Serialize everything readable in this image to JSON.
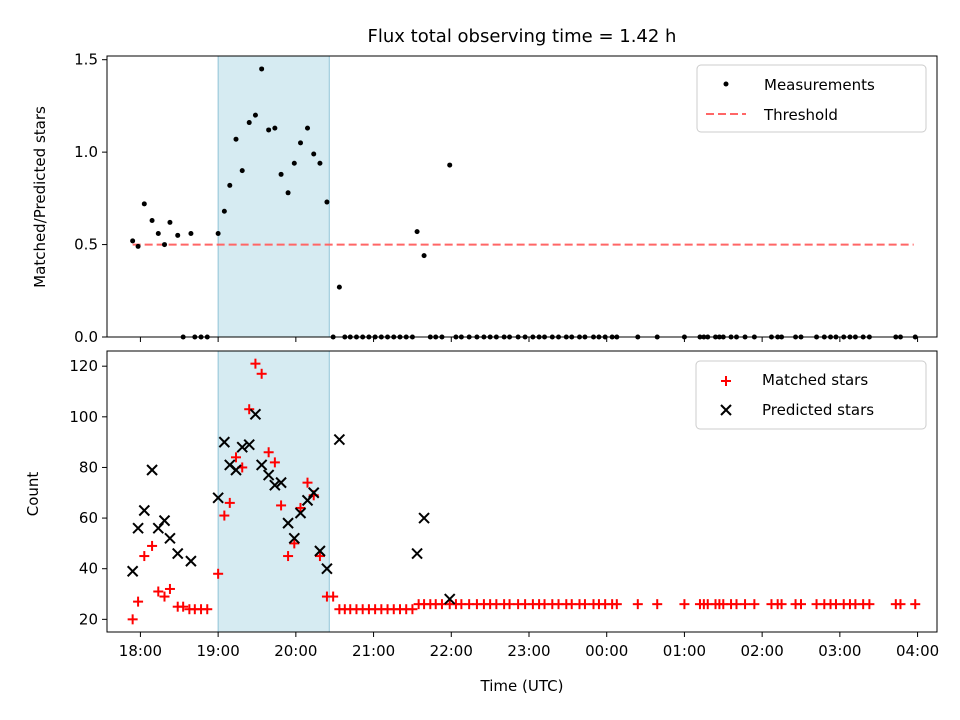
{
  "chart_data": [
    {
      "type": "scatter",
      "title": "Flux total observing time = 1.42 h",
      "xlabel": "",
      "ylabel": "Matched/Predicted stars",
      "xlim": [
        17.57,
        4.25
      ],
      "ylim": [
        0,
        1.52
      ],
      "yticks": [
        0.0,
        0.5,
        1.0,
        1.5
      ],
      "ytick_labels": [
        "0.0",
        "0.5",
        "1.0",
        "1.5"
      ],
      "shaded_span": [
        19.0,
        20.43
      ],
      "legend": {
        "position": "top-right",
        "entries": [
          "Measurements",
          "Threshold"
        ]
      },
      "threshold": {
        "value": 0.5,
        "x_start": 17.9,
        "x_end": 27.95,
        "name": "Threshold"
      },
      "measurements_nonzero": [
        [
          17.9,
          0.52
        ],
        [
          17.97,
          0.49
        ],
        [
          18.05,
          0.72
        ],
        [
          18.15,
          0.63
        ],
        [
          18.23,
          0.56
        ],
        [
          18.31,
          0.5
        ],
        [
          18.38,
          0.62
        ],
        [
          18.48,
          0.55
        ],
        [
          18.65,
          0.56
        ],
        [
          19.0,
          0.56
        ],
        [
          19.08,
          0.68
        ],
        [
          19.15,
          0.82
        ],
        [
          19.23,
          1.07
        ],
        [
          19.31,
          0.9
        ],
        [
          19.4,
          1.16
        ],
        [
          19.48,
          1.2
        ],
        [
          19.56,
          1.45
        ],
        [
          19.65,
          1.12
        ],
        [
          19.73,
          1.13
        ],
        [
          19.81,
          0.88
        ],
        [
          19.9,
          0.78
        ],
        [
          19.98,
          0.94
        ],
        [
          20.06,
          1.05
        ],
        [
          20.15,
          1.13
        ],
        [
          20.23,
          0.99
        ],
        [
          20.31,
          0.94
        ],
        [
          20.4,
          0.73
        ],
        [
          20.56,
          0.27
        ],
        [
          21.56,
          0.57
        ],
        [
          21.65,
          0.44
        ],
        [
          21.98,
          0.93
        ]
      ],
      "measurements_zero_x": [
        18.55,
        18.7,
        18.78,
        18.86,
        20.48,
        20.63,
        20.7,
        20.78,
        20.86,
        20.94,
        21.02,
        21.1,
        21.18,
        21.26,
        21.34,
        21.42,
        21.5,
        21.73,
        21.8,
        21.88,
        22.06,
        22.13,
        22.23,
        22.33,
        22.42,
        22.5,
        22.58,
        22.68,
        22.75,
        22.86,
        22.95,
        23.05,
        23.13,
        23.2,
        23.3,
        23.38,
        23.48,
        23.55,
        23.65,
        23.72,
        23.83,
        23.9,
        23.98,
        24.07,
        24.13,
        24.4,
        24.65,
        25.0,
        25.2,
        25.25,
        25.3,
        25.4,
        25.45,
        25.5,
        25.6,
        25.67,
        25.78,
        25.9,
        26.12,
        26.2,
        26.25,
        26.43,
        26.5,
        26.7,
        26.8,
        26.88,
        26.95,
        27.05,
        27.13,
        27.2,
        27.3,
        27.38,
        27.72,
        27.78,
        27.97
      ]
    },
    {
      "type": "scatter",
      "title": "",
      "xlabel": "Time (UTC)",
      "ylabel": "Count",
      "xlim": [
        17.57,
        4.25
      ],
      "ylim": [
        15,
        126
      ],
      "yticks": [
        20,
        40,
        60,
        80,
        100,
        120
      ],
      "ytick_labels": [
        "20",
        "40",
        "60",
        "80",
        "100",
        "120"
      ],
      "xticks": [
        18,
        19,
        20,
        21,
        22,
        23,
        24,
        25,
        26,
        27,
        28
      ],
      "xtick_labels": [
        "18:00",
        "19:00",
        "20:00",
        "21:00",
        "22:00",
        "23:00",
        "00:00",
        "01:00",
        "02:00",
        "03:00",
        "04:00"
      ],
      "shaded_span": [
        19.0,
        20.43
      ],
      "legend": {
        "position": "top-right",
        "entries": [
          "Matched stars",
          "Predicted stars"
        ]
      },
      "series": [
        {
          "name": "Matched stars",
          "marker": "+",
          "color": "#ff0000",
          "points": [
            [
              17.9,
              20
            ],
            [
              17.97,
              27
            ],
            [
              18.05,
              45
            ],
            [
              18.15,
              49
            ],
            [
              18.23,
              31
            ],
            [
              18.31,
              29
            ],
            [
              18.38,
              32
            ],
            [
              18.48,
              25
            ],
            [
              18.55,
              25
            ],
            [
              18.63,
              24
            ],
            [
              18.7,
              24
            ],
            [
              18.78,
              24
            ],
            [
              18.86,
              24
            ],
            [
              19.0,
              38
            ],
            [
              19.08,
              61
            ],
            [
              19.15,
              66
            ],
            [
              19.23,
              84
            ],
            [
              19.31,
              80
            ],
            [
              19.4,
              103
            ],
            [
              19.48,
              121
            ],
            [
              19.56,
              117
            ],
            [
              19.65,
              86
            ],
            [
              19.73,
              82
            ],
            [
              19.81,
              65
            ],
            [
              19.9,
              45
            ],
            [
              19.98,
              50
            ],
            [
              20.06,
              64
            ],
            [
              20.15,
              74
            ],
            [
              20.23,
              69
            ],
            [
              20.31,
              45
            ],
            [
              20.4,
              29
            ],
            [
              20.48,
              29
            ],
            [
              20.56,
              24
            ],
            [
              20.63,
              24
            ],
            [
              20.7,
              24
            ],
            [
              20.78,
              24
            ],
            [
              20.86,
              24
            ],
            [
              20.94,
              24
            ],
            [
              21.02,
              24
            ],
            [
              21.1,
              24
            ],
            [
              21.18,
              24
            ],
            [
              21.26,
              24
            ],
            [
              21.34,
              24
            ],
            [
              21.42,
              24
            ],
            [
              21.5,
              24
            ],
            [
              21.58,
              26
            ],
            [
              21.65,
              26
            ],
            [
              21.73,
              26
            ],
            [
              21.8,
              26
            ],
            [
              21.88,
              26
            ],
            [
              21.98,
              26
            ],
            [
              22.06,
              26
            ],
            [
              22.13,
              26
            ],
            [
              22.23,
              26
            ],
            [
              22.33,
              26
            ],
            [
              22.42,
              26
            ],
            [
              22.5,
              26
            ],
            [
              22.58,
              26
            ],
            [
              22.68,
              26
            ],
            [
              22.75,
              26
            ],
            [
              22.86,
              26
            ],
            [
              22.95,
              26
            ],
            [
              23.05,
              26
            ],
            [
              23.13,
              26
            ],
            [
              23.2,
              26
            ],
            [
              23.3,
              26
            ],
            [
              23.38,
              26
            ],
            [
              23.48,
              26
            ],
            [
              23.55,
              26
            ],
            [
              23.65,
              26
            ],
            [
              23.72,
              26
            ],
            [
              23.83,
              26
            ],
            [
              23.9,
              26
            ],
            [
              23.98,
              26
            ],
            [
              24.07,
              26
            ],
            [
              24.13,
              26
            ],
            [
              24.4,
              26
            ],
            [
              24.65,
              26
            ],
            [
              25.0,
              26
            ],
            [
              25.2,
              26
            ],
            [
              25.25,
              26
            ],
            [
              25.3,
              26
            ],
            [
              25.4,
              26
            ],
            [
              25.45,
              26
            ],
            [
              25.5,
              26
            ],
            [
              25.6,
              26
            ],
            [
              25.67,
              26
            ],
            [
              25.78,
              26
            ],
            [
              25.9,
              26
            ],
            [
              26.12,
              26
            ],
            [
              26.2,
              26
            ],
            [
              26.25,
              26
            ],
            [
              26.43,
              26
            ],
            [
              26.5,
              26
            ],
            [
              26.7,
              26
            ],
            [
              26.8,
              26
            ],
            [
              26.88,
              26
            ],
            [
              26.95,
              26
            ],
            [
              27.05,
              26
            ],
            [
              27.13,
              26
            ],
            [
              27.2,
              26
            ],
            [
              27.3,
              26
            ],
            [
              27.38,
              26
            ],
            [
              27.72,
              26
            ],
            [
              27.78,
              26
            ],
            [
              27.97,
              26
            ]
          ]
        },
        {
          "name": "Predicted stars",
          "marker": "x",
          "color": "#000000",
          "points": [
            [
              17.9,
              39
            ],
            [
              17.97,
              56
            ],
            [
              18.05,
              63
            ],
            [
              18.15,
              79
            ],
            [
              18.23,
              56
            ],
            [
              18.31,
              59
            ],
            [
              18.38,
              52
            ],
            [
              18.48,
              46
            ],
            [
              18.65,
              43
            ],
            [
              19.0,
              68
            ],
            [
              19.08,
              90
            ],
            [
              19.15,
              81
            ],
            [
              19.23,
              79
            ],
            [
              19.31,
              88
            ],
            [
              19.4,
              89
            ],
            [
              19.48,
              101
            ],
            [
              19.56,
              81
            ],
            [
              19.65,
              77
            ],
            [
              19.73,
              73
            ],
            [
              19.81,
              74
            ],
            [
              19.9,
              58
            ],
            [
              19.98,
              52
            ],
            [
              20.06,
              62
            ],
            [
              20.15,
              67
            ],
            [
              20.23,
              70
            ],
            [
              20.31,
              47
            ],
            [
              20.4,
              40
            ],
            [
              20.56,
              91
            ],
            [
              21.56,
              46
            ],
            [
              21.65,
              60
            ],
            [
              21.98,
              28
            ]
          ]
        }
      ]
    }
  ]
}
